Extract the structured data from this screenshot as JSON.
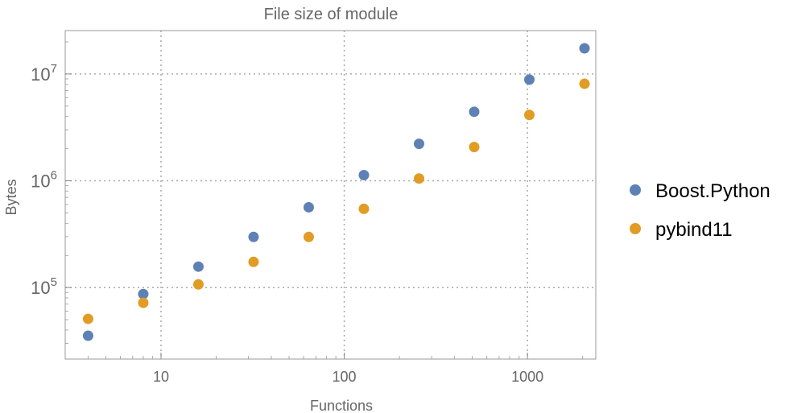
{
  "chart_data": {
    "type": "scatter",
    "title": "File size of module",
    "xlabel": "Functions",
    "ylabel": "Bytes",
    "xscale": "log",
    "yscale": "log",
    "xlim": [
      3.0,
      2360
    ],
    "ylim": [
      21400,
      25500000
    ],
    "grid": true,
    "legend_position": "right",
    "x_ticks": [
      {
        "value": 10,
        "label": "10"
      },
      {
        "value": 100,
        "label": "100"
      },
      {
        "value": 1000,
        "label": "1000"
      }
    ],
    "y_ticks": [
      {
        "value": 100000,
        "base": "10",
        "exp": "5"
      },
      {
        "value": 1000000,
        "base": "10",
        "exp": "6"
      },
      {
        "value": 10000000,
        "base": "10",
        "exp": "7"
      }
    ],
    "x": [
      4,
      8,
      16,
      32,
      64,
      128,
      256,
      512,
      1024,
      2048
    ],
    "series": [
      {
        "name": "Boost.Python",
        "color": "#5e81b5",
        "values": [
          35400,
          87000,
          157000,
          298000,
          565000,
          1130000,
          2220000,
          4430000,
          8860000,
          17400000
        ]
      },
      {
        "name": "pybind11",
        "color": "#e19c24",
        "values": [
          50900,
          72000,
          107000,
          174000,
          298000,
          546000,
          1050000,
          2070000,
          4140000,
          8100000
        ]
      }
    ]
  }
}
